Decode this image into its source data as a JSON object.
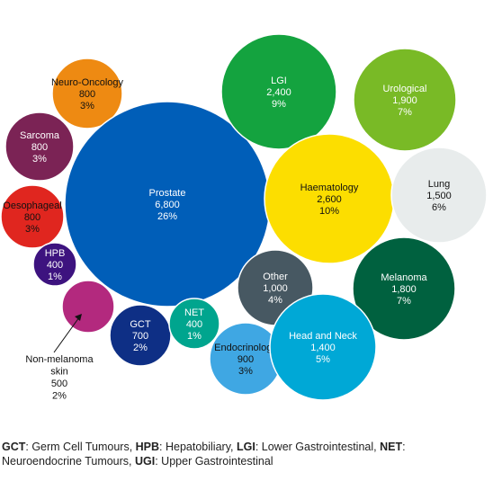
{
  "chart_data": {
    "type": "bubble",
    "bubbles": [
      {
        "name": "Neuro-Oncology",
        "value": "800",
        "pct": "3%",
        "color": "#EE8A12",
        "text": "#111111"
      },
      {
        "name": "Sarcoma",
        "value": "800",
        "pct": "3%",
        "color": "#7B2355",
        "text": "#ffffff"
      },
      {
        "name": "Oesophageal",
        "value": "800",
        "pct": "3%",
        "color": "#E0261F",
        "text": "#111111"
      },
      {
        "name": "HPB",
        "value": "400",
        "pct": "1%",
        "color": "#3D137F",
        "text": "#ffffff"
      },
      {
        "name": "Non-melanoma skin",
        "value": "500",
        "pct": "2%",
        "color": "#B3297E",
        "text": "#111111",
        "external_label": true
      },
      {
        "name": "Prostate",
        "value": "6,800",
        "pct": "26%",
        "color": "#005EB8",
        "text": "#ffffff"
      },
      {
        "name": "GCT",
        "value": "700",
        "pct": "2%",
        "color": "#0E2F85",
        "text": "#ffffff"
      },
      {
        "name": "NET",
        "value": "400",
        "pct": "1%",
        "color": "#00A58E",
        "text": "#ffffff"
      },
      {
        "name": "LGI",
        "value": "2,400",
        "pct": "9%",
        "color": "#14A33F",
        "text": "#ffffff"
      },
      {
        "name": "Urological",
        "value": "1,900",
        "pct": "7%",
        "color": "#79BA26",
        "text": "#ffffff"
      },
      {
        "name": "Haematology",
        "value": "2,600",
        "pct": "10%",
        "color": "#FCDE00",
        "text": "#111111"
      },
      {
        "name": "Lung",
        "value": "1,500",
        "pct": "6%",
        "color": "#E8ECEC",
        "text": "#111111"
      },
      {
        "name": "Other",
        "value": "1,000",
        "pct": "4%",
        "color": "#475862",
        "text": "#ffffff"
      },
      {
        "name": "Melanoma",
        "value": "1,800",
        "pct": "7%",
        "color": "#00613F",
        "text": "#ffffff"
      },
      {
        "name": "Endocrinology",
        "value": "900",
        "pct": "3%",
        "color": "#3FA7E3",
        "text": "#111111"
      },
      {
        "name": "Head and Neck",
        "value": "1,400",
        "pct": "5%",
        "color": "#00A8D6",
        "text": "#ffffff"
      }
    ]
  },
  "footnote": {
    "parts": [
      {
        "abbr": "GCT",
        "text": ": Germ Cell Tumours,  "
      },
      {
        "abbr": "HPB",
        "text": ": Hepatobiliary, "
      },
      {
        "abbr": "LGI",
        "text": ": Lower Gastrointestinal, "
      },
      {
        "abbr": "NET",
        "text": ": Neuroendocrine Tumours, "
      },
      {
        "abbr": "UGI",
        "text": ": Upper Gastrointestinal"
      }
    ]
  }
}
